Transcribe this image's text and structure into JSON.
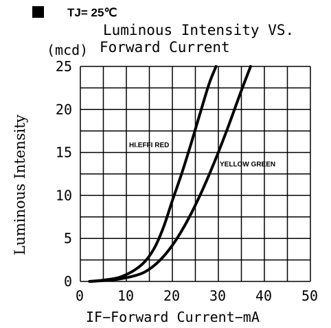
{
  "header": {
    "condition_label": "TJ= 25℃"
  },
  "chart_data": {
    "type": "line",
    "title": "Luminous Intensity VS. Forward Current",
    "title_line1": "Luminous Intensity VS.",
    "title_line2": "Forward Current",
    "unit_label": "(mcd)",
    "xlabel": "IF−Forward Current−mA",
    "ylabel": "Luminous Intensity",
    "xlim": [
      0,
      50
    ],
    "ylim": [
      0,
      25
    ],
    "x_ticks": [
      0,
      10,
      20,
      30,
      40,
      50
    ],
    "y_ticks": [
      0,
      5,
      10,
      15,
      20,
      25
    ],
    "grid": true,
    "series": [
      {
        "name": "HI.EFFI RED",
        "x": [
          2,
          5,
          8,
          10,
          12,
          14,
          16,
          18,
          20,
          22,
          24,
          26,
          28,
          29.5
        ],
        "y": [
          0,
          0.15,
          0.4,
          0.8,
          1.4,
          2.3,
          3.8,
          6.2,
          9.4,
          12.5,
          15.9,
          19.5,
          23,
          25
        ]
      },
      {
        "name": "YELLOW GREEN",
        "x": [
          2,
          5,
          8,
          11,
          14,
          17,
          20,
          23,
          26,
          29,
          32,
          35,
          37
        ],
        "y": [
          0,
          0.1,
          0.25,
          0.55,
          1.1,
          2.3,
          4.2,
          6.8,
          10.0,
          13.7,
          17.8,
          22.2,
          25
        ]
      }
    ],
    "labels": {
      "red": "HI.EFFI RED",
      "green": "YELLOW GREEN"
    }
  }
}
